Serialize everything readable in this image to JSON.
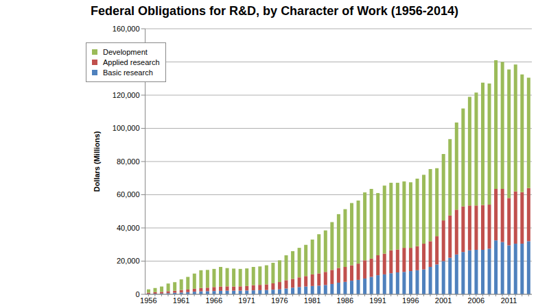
{
  "chart_data": {
    "type": "bar",
    "title": "Federal Obligations for R&D, by Character of Work (1956-2014)",
    "y_label": "Dollars (Millions)",
    "stacked": true,
    "grid": true,
    "legend": "upper left",
    "categories": [
      "1956",
      null,
      null,
      null,
      null,
      "1961",
      null,
      null,
      null,
      null,
      "1966",
      null,
      null,
      null,
      null,
      "1971",
      null,
      null,
      null,
      null,
      "1976",
      null,
      null,
      null,
      null,
      "1981",
      null,
      null,
      null,
      null,
      "1986",
      null,
      null,
      null,
      null,
      "1991",
      null,
      null,
      null,
      null,
      "1996",
      null,
      null,
      null,
      null,
      "2001",
      null,
      null,
      null,
      null,
      "2006",
      null,
      null,
      null,
      null,
      "2011",
      null,
      null,
      null
    ],
    "series": [
      {
        "name": "Basic research",
        "color": "#4f81bd",
        "values": [
          300,
          400,
          500,
          700,
          900,
          1100,
          1300,
          1600,
          1800,
          1900,
          2000,
          2100,
          2200,
          2200,
          2200,
          2300,
          2400,
          2500,
          2600,
          2800,
          3000,
          3500,
          4000,
          4400,
          4700,
          5000,
          5200,
          5600,
          6200,
          7000,
          7500,
          8200,
          8700,
          9500,
          10500,
          11500,
          12000,
          12700,
          13200,
          13500,
          14000,
          14500,
          15000,
          16500,
          18000,
          20000,
          22000,
          24000,
          25500,
          26500,
          26800,
          26800,
          27500,
          32500,
          31500,
          29500,
          30500,
          30500,
          32000
        ]
      },
      {
        "name": "Applied research",
        "color": "#c0504d",
        "values": [
          700,
          900,
          1000,
          1200,
          1300,
          1500,
          1600,
          1800,
          2000,
          2100,
          2400,
          2600,
          2600,
          2500,
          2600,
          2700,
          3100,
          3200,
          3400,
          3800,
          4400,
          5000,
          5300,
          5800,
          6300,
          7000,
          7400,
          7900,
          8500,
          8900,
          9000,
          9300,
          9800,
          11000,
          11000,
          12000,
          12500,
          13800,
          13800,
          14500,
          14000,
          14500,
          15500,
          15500,
          17000,
          24500,
          25500,
          27000,
          27500,
          27000,
          26700,
          27000,
          26500,
          31000,
          32000,
          28500,
          31500,
          31000,
          32000
        ]
      },
      {
        "name": "Development",
        "color": "#9bbb59",
        "values": [
          2000,
          2500,
          3200,
          4600,
          5100,
          6400,
          7600,
          9100,
          10700,
          10700,
          10900,
          11800,
          11000,
          10800,
          10500,
          10600,
          11000,
          11100,
          11500,
          12400,
          13100,
          15000,
          16700,
          17800,
          18800,
          21000,
          23600,
          25000,
          28800,
          32400,
          34800,
          37500,
          38000,
          40900,
          42000,
          37500,
          41000,
          40700,
          40200,
          40000,
          39500,
          40700,
          41500,
          43500,
          41000,
          40000,
          46000,
          52500,
          59000,
          65500,
          68000,
          73700,
          73000,
          77500,
          76500,
          77500,
          76500,
          71000,
          66500
        ]
      }
    ],
    "ylim": [
      0,
      160000
    ],
    "yticks": [
      0,
      {
        "value": 20000,
        "label": "20,000"
      },
      {
        "value": 40000,
        "label": "40,000"
      },
      {
        "value": 60000,
        "label": "60,000"
      },
      {
        "value": 80000,
        "label": "80,000"
      },
      {
        "value": 100000,
        "label": "100,000"
      },
      {
        "value": 120000,
        "label": "120,000"
      },
      {
        "value": 140000,
        "label": "140,000"
      },
      {
        "value": 160000,
        "label": "160,000"
      }
    ]
  }
}
